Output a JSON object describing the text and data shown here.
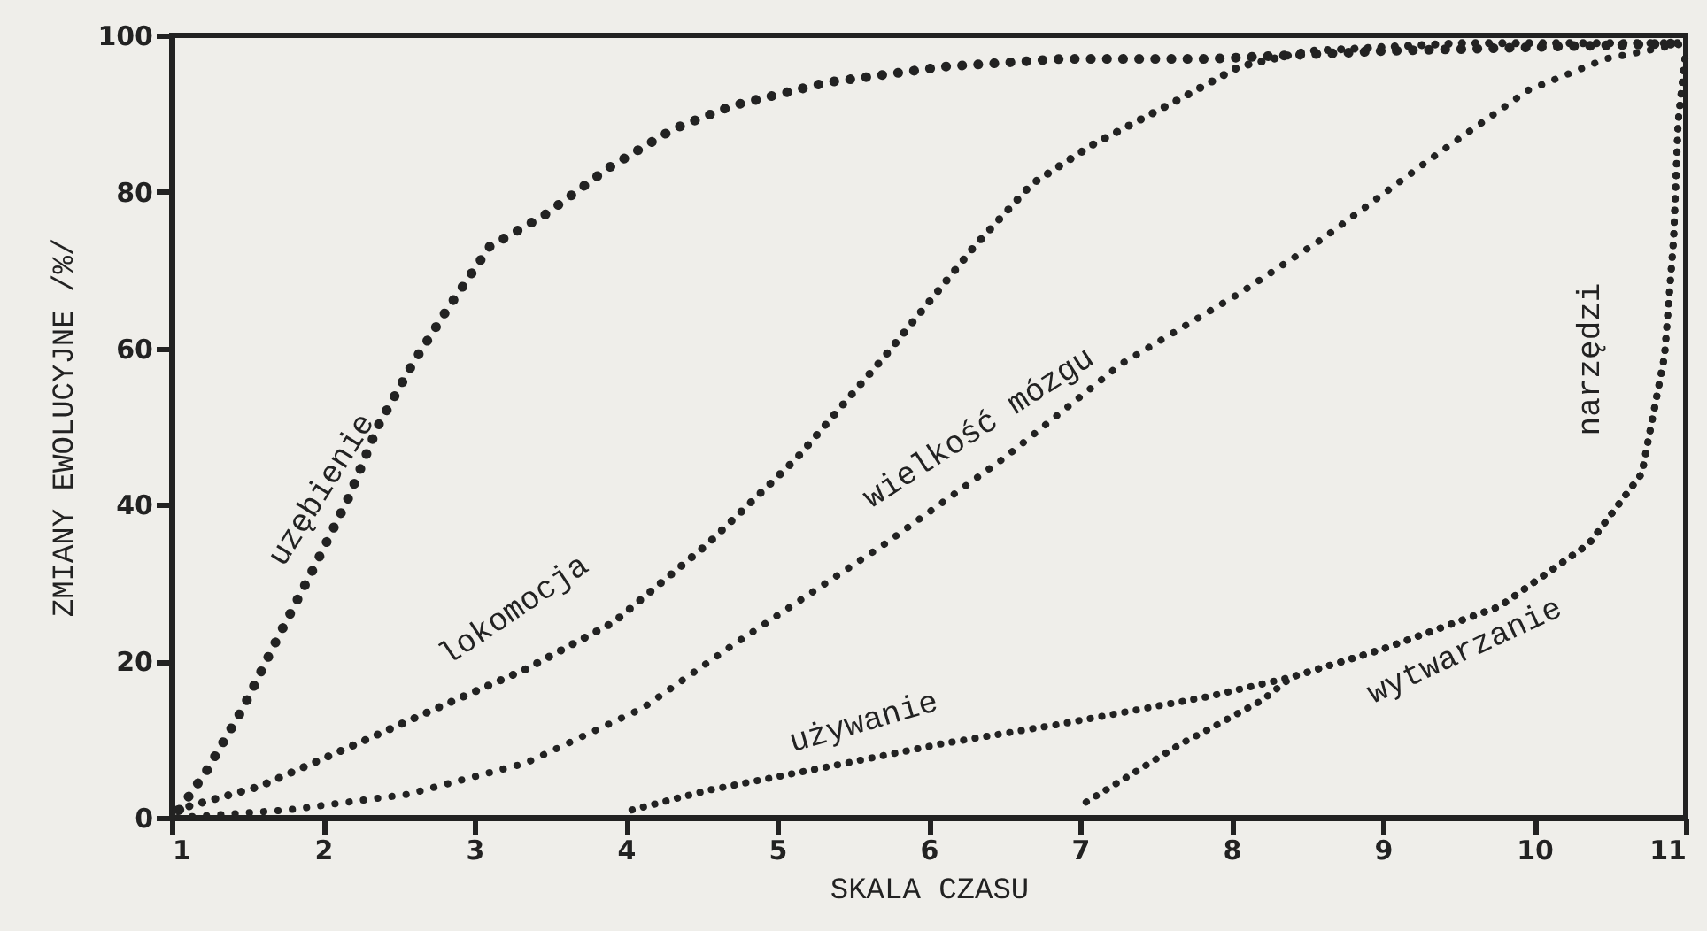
{
  "chart_data": {
    "type": "line",
    "xlabel": "SKALA CZASU",
    "ylabel": "ZMIANY EWOLUCYJNE /%/",
    "xlim": [
      1,
      11
    ],
    "ylim": [
      0,
      100
    ],
    "xticks": [
      1,
      2,
      3,
      4,
      5,
      6,
      7,
      8,
      9,
      10,
      11
    ],
    "yticks": [
      0,
      20,
      40,
      60,
      80,
      100
    ],
    "line_style": "dotted",
    "annotations": [
      "narzędzi"
    ],
    "series": [
      {
        "name": "uzębienie",
        "color": "#222222",
        "x": [
          1.05,
          1.23,
          1.47,
          1.7,
          1.94,
          2.17,
          2.36,
          2.59,
          2.82,
          3.1,
          3.46,
          3.88,
          4.31,
          4.7,
          5.33,
          6.1,
          6.88,
          7.85,
          9,
          10,
          11
        ],
        "values": [
          1,
          6,
          14,
          23,
          32,
          41,
          50,
          58,
          65,
          73,
          77,
          83,
          88,
          91,
          94,
          96,
          97,
          97,
          98,
          98.5,
          99
        ]
      },
      {
        "name": "lokomocja",
        "color": "#222222",
        "x": [
          1.03,
          1.58,
          2.17,
          2.75,
          3.34,
          3.92,
          4.54,
          5.13,
          5.71,
          6.3,
          6.68,
          7.08,
          7.67,
          8.05,
          8.5,
          9.5,
          11
        ],
        "values": [
          1,
          4,
          9,
          14,
          19,
          25,
          35,
          46,
          59,
          73,
          81,
          86,
          92,
          96,
          98,
          99,
          99
        ]
      },
      {
        "name": "wielkość mózgu",
        "color": "#222222",
        "x": [
          1.04,
          1.77,
          2.56,
          3.34,
          4.11,
          4.7,
          5.71,
          6.5,
          7.27,
          8.05,
          8.6,
          9.37,
          9.96,
          10.47,
          10.86,
          11
        ],
        "values": [
          0,
          1,
          3,
          7,
          14,
          22,
          35,
          46,
          58,
          67,
          74,
          85,
          93,
          97,
          98.5,
          99
        ]
      },
      {
        "name": "używanie",
        "color": "#222222",
        "x": [
          4.04,
          4.54,
          5.33,
          6.1,
          6.88,
          7.85,
          8.4,
          8.99,
          9.77,
          10.36,
          10.71,
          10.86,
          10.92,
          10.95,
          11
        ],
        "values": [
          1,
          3.5,
          6.5,
          9.5,
          12,
          15.5,
          18,
          21.5,
          27,
          35,
          44,
          59,
          74,
          89,
          98
        ]
      },
      {
        "name": "wytwarzanie",
        "color": "#222222",
        "x": [
          7.04,
          7.67,
          7.82,
          8.2,
          8.4,
          8.99,
          9.77,
          10.36,
          10.71,
          10.86,
          10.92,
          10.95,
          11
        ],
        "values": [
          2,
          9.5,
          11,
          15,
          18,
          21.5,
          27,
          35,
          44,
          59,
          74,
          89,
          98
        ]
      }
    ]
  }
}
